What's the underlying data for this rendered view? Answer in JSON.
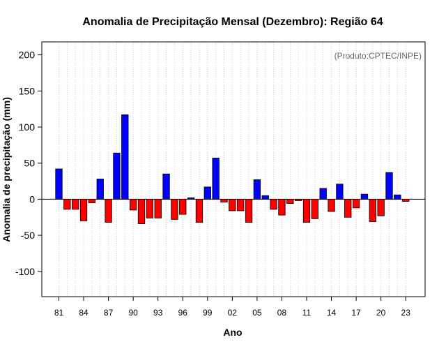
{
  "chart_data": {
    "type": "bar",
    "title": "Anomalia de Precipitação Mensal (Dezembro): Região 64",
    "xlabel": "Ano",
    "ylabel": "Anomalia de precipitação (mm)",
    "credit": "(Produto:CPTEC/INPE)",
    "ylim": [
      -135,
      218
    ],
    "yticks": [
      200,
      150,
      100,
      50,
      0,
      -50,
      -100
    ],
    "grid": "vertical-dotted",
    "positive_color": "#0000ff",
    "negative_color": "#ff0000",
    "categories": [
      "1981",
      "1982",
      "1983",
      "1984",
      "1985",
      "1986",
      "1987",
      "1988",
      "1989",
      "1990",
      "1991",
      "1992",
      "1993",
      "1994",
      "1995",
      "1996",
      "1997",
      "1998",
      "1999",
      "2000",
      "2001",
      "2002",
      "2003",
      "2004",
      "2005",
      "2006",
      "2007",
      "2008",
      "2009",
      "2010",
      "2011",
      "2012",
      "2013",
      "2014",
      "2015",
      "2016",
      "2017",
      "2018",
      "2019",
      "2020",
      "2021",
      "2022",
      "2023"
    ],
    "values": [
      42,
      -14,
      -14,
      -30,
      -5,
      28,
      -32,
      64,
      117,
      -15,
      -34,
      -26,
      -26,
      35,
      -28,
      -21,
      2,
      -32,
      17,
      57,
      -4,
      -16,
      -16,
      -32,
      27,
      5,
      -14,
      -22,
      -6,
      -2,
      -32,
      -27,
      15,
      -17,
      21,
      -25,
      -12,
      7,
      -31,
      -23,
      37,
      6,
      -3
    ],
    "xtick_labels": [
      "81",
      "84",
      "87",
      "90",
      "93",
      "96",
      "99",
      "02",
      "05",
      "08",
      "11",
      "14",
      "17",
      "20",
      "23"
    ],
    "xtick_positions": [
      "1981",
      "1984",
      "1987",
      "1990",
      "1993",
      "1996",
      "1999",
      "2002",
      "2005",
      "2008",
      "2011",
      "2014",
      "2017",
      "2020",
      "2023"
    ]
  }
}
